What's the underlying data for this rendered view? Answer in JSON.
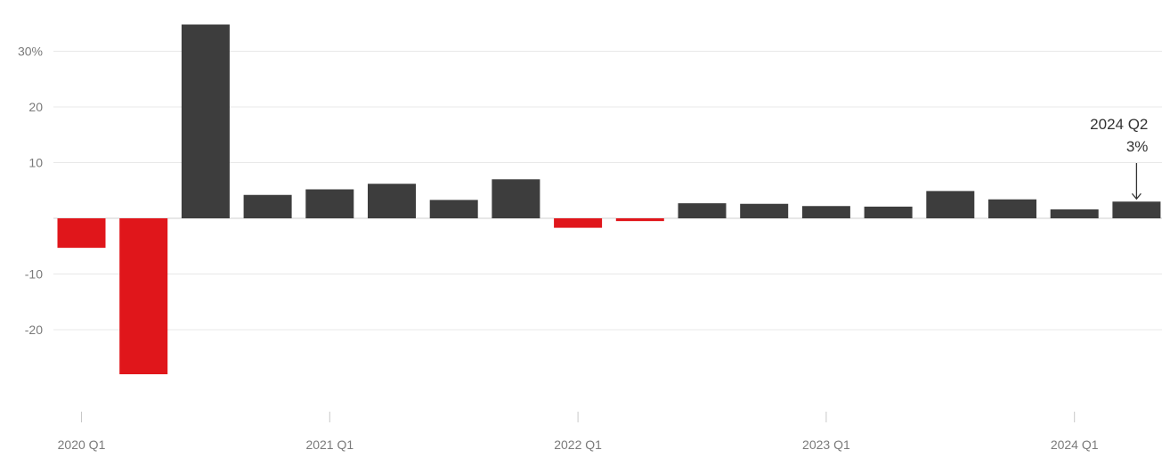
{
  "chart_data": {
    "type": "bar",
    "title": "",
    "xlabel": "",
    "ylabel": "",
    "ylim": [
      -33,
      35
    ],
    "y_ticks": [
      {
        "value": 30,
        "label": "30%"
      },
      {
        "value": 20,
        "label": "20"
      },
      {
        "value": 10,
        "label": "10"
      },
      {
        "value": -10,
        "label": "-10"
      },
      {
        "value": -20,
        "label": "-20"
      }
    ],
    "grid": true,
    "categories": [
      "2020 Q1",
      "2020 Q2",
      "2020 Q3",
      "2020 Q4",
      "2021 Q1",
      "2021 Q2",
      "2021 Q3",
      "2021 Q4",
      "2022 Q1",
      "2022 Q2",
      "2022 Q3",
      "2022 Q4",
      "2023 Q1",
      "2023 Q2",
      "2023 Q3",
      "2023 Q4",
      "2024 Q1",
      "2024 Q2"
    ],
    "x_tick_labels": [
      {
        "category": "2020 Q1",
        "label": "2020 Q1"
      },
      {
        "category": "2021 Q1",
        "label": "2021 Q1"
      },
      {
        "category": "2022 Q1",
        "label": "2022 Q1"
      },
      {
        "category": "2023 Q1",
        "label": "2023 Q1"
      },
      {
        "category": "2024 Q1",
        "label": "2024 Q1"
      }
    ],
    "values": [
      -5.3,
      -28.0,
      34.8,
      4.2,
      5.2,
      6.2,
      3.3,
      7.0,
      -1.7,
      -0.5,
      2.7,
      2.6,
      2.2,
      2.1,
      4.9,
      3.4,
      1.6,
      3.0
    ],
    "colors": {
      "positive": "#3d3d3d",
      "negative": "#e0161b"
    },
    "annotation": {
      "category": "2024 Q2",
      "line1": "2024 Q2",
      "line2": "3%"
    }
  }
}
